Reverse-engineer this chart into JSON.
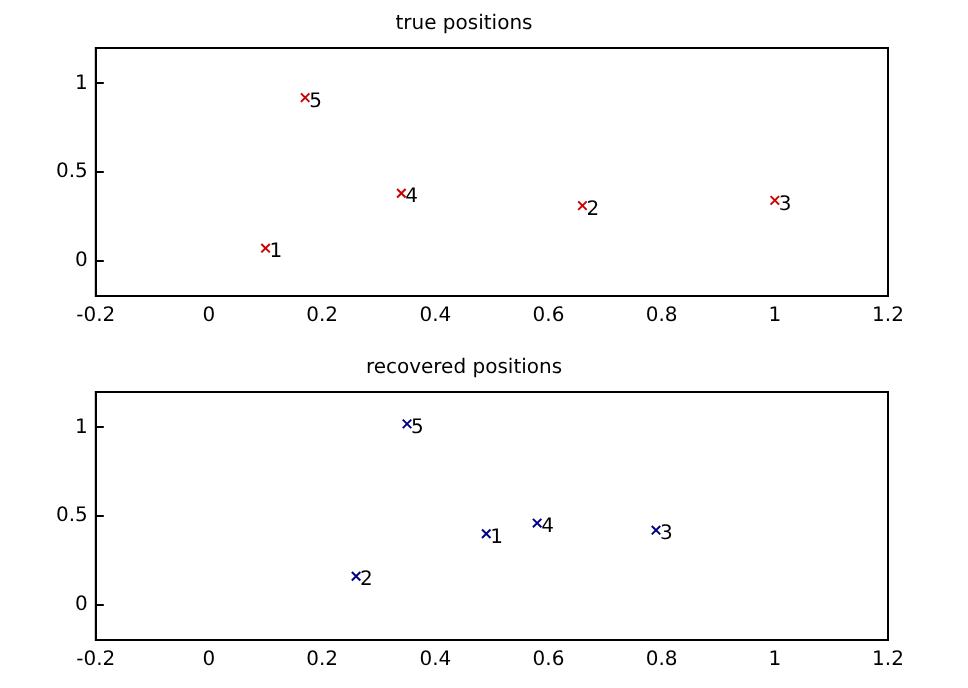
{
  "chart_data": [
    {
      "type": "scatter",
      "title": "true positions",
      "marker": "cross",
      "grid": false,
      "legend": false,
      "series": [
        {
          "color": "#cc0000",
          "x": [
            0.1,
            0.66,
            1.0,
            0.34,
            0.17
          ],
          "values": [
            0.07,
            0.31,
            0.34,
            0.38,
            0.92
          ]
        }
      ],
      "annotations": [
        {
          "text": "1",
          "x": 0.1,
          "y": 0.07
        },
        {
          "text": "2",
          "x": 0.66,
          "y": 0.31
        },
        {
          "text": "3",
          "x": 1.0,
          "y": 0.34
        },
        {
          "text": "4",
          "x": 0.34,
          "y": 0.38
        },
        {
          "text": "5",
          "x": 0.17,
          "y": 0.92
        }
      ],
      "xlim": [
        -0.2,
        1.2
      ],
      "xticks": [
        -0.2,
        0,
        0.2,
        0.4,
        0.6,
        0.8,
        1,
        1.2
      ],
      "ylim": [
        -0.2,
        1.2
      ],
      "yticks": [
        0,
        0.5,
        1
      ]
    },
    {
      "type": "scatter",
      "title": "recovered positions",
      "marker": "cross",
      "grid": false,
      "legend": false,
      "series": [
        {
          "color": "#000080",
          "x": [
            0.49,
            0.26,
            0.79,
            0.58,
            0.35
          ],
          "values": [
            0.4,
            0.16,
            0.42,
            0.46,
            1.02
          ]
        }
      ],
      "annotations": [
        {
          "text": "1",
          "x": 0.49,
          "y": 0.4
        },
        {
          "text": "2",
          "x": 0.26,
          "y": 0.16
        },
        {
          "text": "3",
          "x": 0.79,
          "y": 0.42
        },
        {
          "text": "4",
          "x": 0.58,
          "y": 0.46
        },
        {
          "text": "5",
          "x": 0.35,
          "y": 1.02
        }
      ],
      "xlim": [
        -0.2,
        1.2
      ],
      "xticks": [
        -0.2,
        0,
        0.2,
        0.4,
        0.6,
        0.8,
        1,
        1.2
      ],
      "ylim": [
        -0.2,
        1.2
      ],
      "yticks": [
        0,
        0.5,
        1
      ]
    }
  ]
}
